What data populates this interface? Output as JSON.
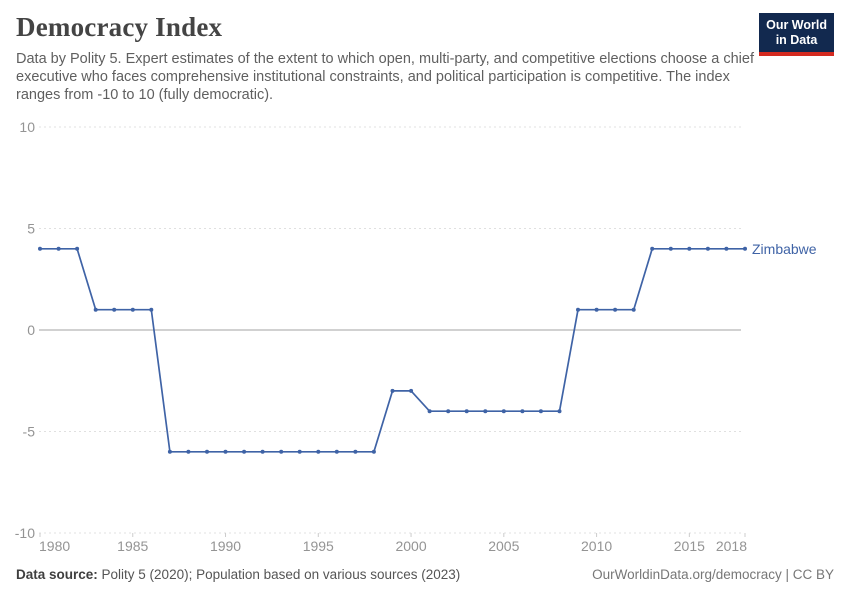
{
  "header": {
    "title": "Democracy Index",
    "subtitle": "Data by Polity 5. Expert estimates of the extent to which open, multi-party, and competitive elections choose a chief executive who faces comprehensive institutional constraints, and political participation is competitive. The index ranges from -10 to 10 (fully democratic)."
  },
  "logo": {
    "line1": "Our World",
    "line2": "in Data",
    "bg_color": "#12294f",
    "bar_color": "#d42a20"
  },
  "footer": {
    "source_label": "Data source:",
    "source_text": " Polity 5 (2020); Population based on various sources (2023)",
    "right_text": "OurWorldinData.org/democracy | CC BY"
  },
  "chart_data": {
    "type": "line",
    "title": "Democracy Index",
    "xlabel": "",
    "ylabel": "",
    "xlim": [
      1980,
      2018
    ],
    "ylim": [
      -10,
      10
    ],
    "x_ticks": [
      1980,
      1985,
      1990,
      1995,
      2000,
      2005,
      2010,
      2015,
      2018
    ],
    "y_ticks": [
      10,
      5,
      0,
      -5,
      -10
    ],
    "grid": "dashed-horizontal",
    "legend_position": "end-of-line-label",
    "zero_line": true,
    "series": [
      {
        "name": "Zimbabwe",
        "color": "#3f63a6",
        "marker": "dot",
        "points": [
          [
            1980,
            4
          ],
          [
            1981,
            4
          ],
          [
            1982,
            4
          ],
          [
            1983,
            1
          ],
          [
            1984,
            1
          ],
          [
            1985,
            1
          ],
          [
            1986,
            1
          ],
          [
            1987,
            -6
          ],
          [
            1988,
            -6
          ],
          [
            1989,
            -6
          ],
          [
            1990,
            -6
          ],
          [
            1991,
            -6
          ],
          [
            1992,
            -6
          ],
          [
            1993,
            -6
          ],
          [
            1994,
            -6
          ],
          [
            1995,
            -6
          ],
          [
            1996,
            -6
          ],
          [
            1997,
            -6
          ],
          [
            1998,
            -6
          ],
          [
            1999,
            -3
          ],
          [
            2000,
            -3
          ],
          [
            2001,
            -4
          ],
          [
            2002,
            -4
          ],
          [
            2003,
            -4
          ],
          [
            2004,
            -4
          ],
          [
            2005,
            -4
          ],
          [
            2006,
            -4
          ],
          [
            2007,
            -4
          ],
          [
            2008,
            -4
          ],
          [
            2009,
            1
          ],
          [
            2010,
            1
          ],
          [
            2011,
            1
          ],
          [
            2012,
            1
          ],
          [
            2013,
            4
          ],
          [
            2014,
            4
          ],
          [
            2015,
            4
          ],
          [
            2016,
            4
          ],
          [
            2017,
            4
          ],
          [
            2018,
            4
          ]
        ]
      }
    ]
  }
}
